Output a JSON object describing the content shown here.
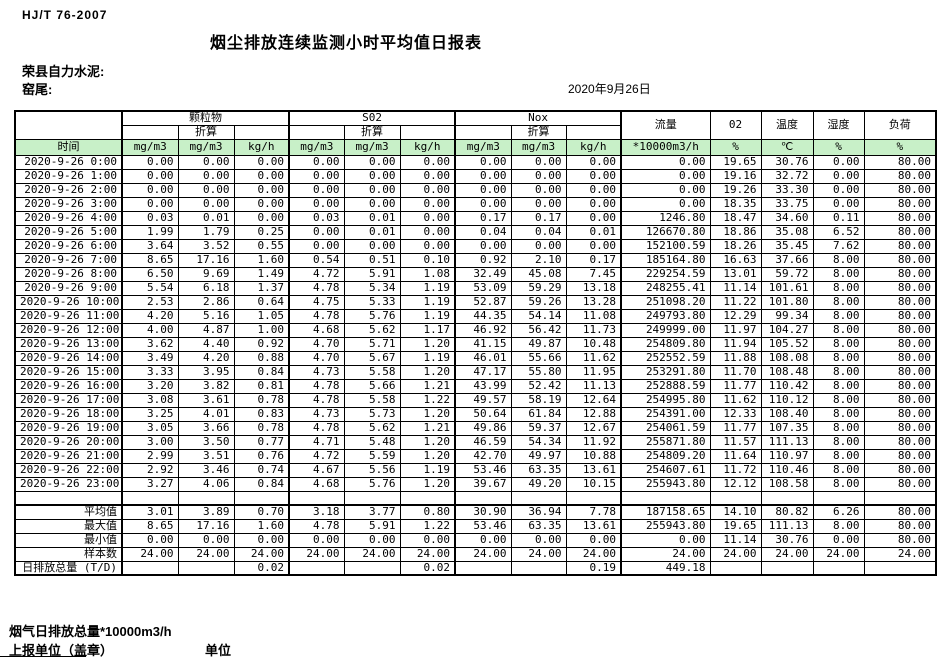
{
  "meta": {
    "standard": "HJ/T  76-2007",
    "title": "烟尘排放连续监测小时平均值日报表",
    "company": "荣县自力水泥:",
    "location": "窑尾:",
    "date": "2020年9月26日"
  },
  "table": {
    "time_header": "时间",
    "groups": [
      "颗粒物",
      "S02",
      "Nox"
    ],
    "subheader": "折算",
    "tail_headers": [
      "流量",
      "02",
      "温度",
      "湿度",
      "负荷"
    ],
    "units": [
      "mg/m3",
      "mg/m3",
      "kg/h",
      "mg/m3",
      "mg/m3",
      "kg/h",
      "mg/m3",
      "mg/m3",
      "kg/h",
      "*10000m3/h",
      "%",
      "℃",
      "%",
      "%"
    ],
    "rows": [
      {
        "time": "2020-9-26 0:00",
        "values": [
          "0.00",
          "0.00",
          "0.00",
          "0.00",
          "0.00",
          "0.00",
          "0.00",
          "0.00",
          "0.00",
          "0.00",
          "19.65",
          "30.76",
          "0.00",
          "80.00"
        ]
      },
      {
        "time": "2020-9-26 1:00",
        "values": [
          "0.00",
          "0.00",
          "0.00",
          "0.00",
          "0.00",
          "0.00",
          "0.00",
          "0.00",
          "0.00",
          "0.00",
          "19.16",
          "32.72",
          "0.00",
          "80.00"
        ]
      },
      {
        "time": "2020-9-26 2:00",
        "values": [
          "0.00",
          "0.00",
          "0.00",
          "0.00",
          "0.00",
          "0.00",
          "0.00",
          "0.00",
          "0.00",
          "0.00",
          "19.26",
          "33.30",
          "0.00",
          "80.00"
        ]
      },
      {
        "time": "2020-9-26 3:00",
        "values": [
          "0.00",
          "0.00",
          "0.00",
          "0.00",
          "0.00",
          "0.00",
          "0.00",
          "0.00",
          "0.00",
          "0.00",
          "18.35",
          "33.75",
          "0.00",
          "80.00"
        ]
      },
      {
        "time": "2020-9-26 4:00",
        "values": [
          "0.03",
          "0.01",
          "0.00",
          "0.03",
          "0.01",
          "0.00",
          "0.17",
          "0.17",
          "0.00",
          "1246.80",
          "18.47",
          "34.60",
          "0.11",
          "80.00"
        ]
      },
      {
        "time": "2020-9-26 5:00",
        "values": [
          "1.99",
          "1.79",
          "0.25",
          "0.00",
          "0.01",
          "0.00",
          "0.04",
          "0.04",
          "0.01",
          "126670.80",
          "18.86",
          "35.08",
          "6.52",
          "80.00"
        ]
      },
      {
        "time": "2020-9-26 6:00",
        "values": [
          "3.64",
          "3.52",
          "0.55",
          "0.00",
          "0.00",
          "0.00",
          "0.00",
          "0.00",
          "0.00",
          "152100.59",
          "18.26",
          "35.45",
          "7.62",
          "80.00"
        ]
      },
      {
        "time": "2020-9-26 7:00",
        "values": [
          "8.65",
          "17.16",
          "1.60",
          "0.54",
          "0.51",
          "0.10",
          "0.92",
          "2.10",
          "0.17",
          "185164.80",
          "16.63",
          "37.66",
          "8.00",
          "80.00"
        ]
      },
      {
        "time": "2020-9-26 8:00",
        "values": [
          "6.50",
          "9.69",
          "1.49",
          "4.72",
          "5.91",
          "1.08",
          "32.49",
          "45.08",
          "7.45",
          "229254.59",
          "13.01",
          "59.72",
          "8.00",
          "80.00"
        ]
      },
      {
        "time": "2020-9-26 9:00",
        "values": [
          "5.54",
          "6.18",
          "1.37",
          "4.78",
          "5.34",
          "1.19",
          "53.09",
          "59.29",
          "13.18",
          "248255.41",
          "11.14",
          "101.61",
          "8.00",
          "80.00"
        ]
      },
      {
        "time": "2020-9-26 10:00",
        "values": [
          "2.53",
          "2.86",
          "0.64",
          "4.75",
          "5.33",
          "1.19",
          "52.87",
          "59.26",
          "13.28",
          "251098.20",
          "11.22",
          "101.80",
          "8.00",
          "80.00"
        ]
      },
      {
        "time": "2020-9-26 11:00",
        "values": [
          "4.20",
          "5.16",
          "1.05",
          "4.78",
          "5.76",
          "1.19",
          "44.35",
          "54.14",
          "11.08",
          "249793.80",
          "12.29",
          "99.34",
          "8.00",
          "80.00"
        ]
      },
      {
        "time": "2020-9-26 12:00",
        "values": [
          "4.00",
          "4.87",
          "1.00",
          "4.68",
          "5.62",
          "1.17",
          "46.92",
          "56.42",
          "11.73",
          "249999.00",
          "11.97",
          "104.27",
          "8.00",
          "80.00"
        ]
      },
      {
        "time": "2020-9-26 13:00",
        "values": [
          "3.62",
          "4.40",
          "0.92",
          "4.70",
          "5.71",
          "1.20",
          "41.15",
          "49.87",
          "10.48",
          "254809.80",
          "11.94",
          "105.52",
          "8.00",
          "80.00"
        ]
      },
      {
        "time": "2020-9-26 14:00",
        "values": [
          "3.49",
          "4.20",
          "0.88",
          "4.70",
          "5.67",
          "1.19",
          "46.01",
          "55.66",
          "11.62",
          "252552.59",
          "11.88",
          "108.08",
          "8.00",
          "80.00"
        ]
      },
      {
        "time": "2020-9-26 15:00",
        "values": [
          "3.33",
          "3.95",
          "0.84",
          "4.73",
          "5.58",
          "1.20",
          "47.17",
          "55.80",
          "11.95",
          "253291.80",
          "11.70",
          "108.48",
          "8.00",
          "80.00"
        ]
      },
      {
        "time": "2020-9-26 16:00",
        "values": [
          "3.20",
          "3.82",
          "0.81",
          "4.78",
          "5.66",
          "1.21",
          "43.99",
          "52.42",
          "11.13",
          "252888.59",
          "11.77",
          "110.42",
          "8.00",
          "80.00"
        ]
      },
      {
        "time": "2020-9-26 17:00",
        "values": [
          "3.08",
          "3.61",
          "0.78",
          "4.78",
          "5.58",
          "1.22",
          "49.57",
          "58.19",
          "12.64",
          "254995.80",
          "11.62",
          "110.12",
          "8.00",
          "80.00"
        ]
      },
      {
        "time": "2020-9-26 18:00",
        "values": [
          "3.25",
          "4.01",
          "0.83",
          "4.73",
          "5.73",
          "1.20",
          "50.64",
          "61.84",
          "12.88",
          "254391.00",
          "12.33",
          "108.40",
          "8.00",
          "80.00"
        ]
      },
      {
        "time": "2020-9-26 19:00",
        "values": [
          "3.05",
          "3.66",
          "0.78",
          "4.78",
          "5.62",
          "1.21",
          "49.86",
          "59.37",
          "12.67",
          "254061.59",
          "11.77",
          "107.35",
          "8.00",
          "80.00"
        ]
      },
      {
        "time": "2020-9-26 20:00",
        "values": [
          "3.00",
          "3.50",
          "0.77",
          "4.71",
          "5.48",
          "1.20",
          "46.59",
          "54.34",
          "11.92",
          "255871.80",
          "11.57",
          "111.13",
          "8.00",
          "80.00"
        ]
      },
      {
        "time": "2020-9-26 21:00",
        "values": [
          "2.99",
          "3.51",
          "0.76",
          "4.72",
          "5.59",
          "1.20",
          "42.70",
          "49.97",
          "10.88",
          "254809.20",
          "11.64",
          "110.97",
          "8.00",
          "80.00"
        ]
      },
      {
        "time": "2020-9-26 22:00",
        "values": [
          "2.92",
          "3.46",
          "0.74",
          "4.67",
          "5.56",
          "1.19",
          "53.46",
          "63.35",
          "13.61",
          "254607.61",
          "11.72",
          "110.46",
          "8.00",
          "80.00"
        ]
      },
      {
        "time": "2020-9-26 23:00",
        "values": [
          "3.27",
          "4.06",
          "0.84",
          "4.68",
          "5.76",
          "1.20",
          "39.67",
          "49.20",
          "10.15",
          "255943.80",
          "12.12",
          "108.58",
          "8.00",
          "80.00"
        ]
      }
    ],
    "summary": [
      {
        "label": "平均值",
        "values": [
          "3.01",
          "3.89",
          "0.70",
          "3.18",
          "3.77",
          "0.80",
          "30.90",
          "36.94",
          "7.78",
          "187158.65",
          "14.10",
          "80.82",
          "6.26",
          "80.00"
        ]
      },
      {
        "label": "最大值",
        "values": [
          "8.65",
          "17.16",
          "1.60",
          "4.78",
          "5.91",
          "1.22",
          "53.46",
          "63.35",
          "13.61",
          "255943.80",
          "19.65",
          "111.13",
          "8.00",
          "80.00"
        ]
      },
      {
        "label": "最小值",
        "values": [
          "0.00",
          "0.00",
          "0.00",
          "0.00",
          "0.00",
          "0.00",
          "0.00",
          "0.00",
          "0.00",
          "0.00",
          "11.14",
          "30.76",
          "0.00",
          "80.00"
        ]
      },
      {
        "label": "样本数",
        "values": [
          "24.00",
          "24.00",
          "24.00",
          "24.00",
          "24.00",
          "24.00",
          "24.00",
          "24.00",
          "24.00",
          "24.00",
          "24.00",
          "24.00",
          "24.00",
          "24.00"
        ]
      },
      {
        "label": "日排放总量 (T/D)",
        "values": [
          "",
          "",
          "0.02",
          "",
          "",
          "0.02",
          "",
          "",
          "0.19",
          "449.18",
          "",
          "",
          "",
          ""
        ]
      }
    ]
  },
  "footer": {
    "total_line": "烟气日排放总量*10000m3/h",
    "report_unit": "上报单位（盖章）",
    "unit": "单位"
  },
  "colors": {
    "header_green": "#c8f0c8",
    "border": "#000000"
  }
}
